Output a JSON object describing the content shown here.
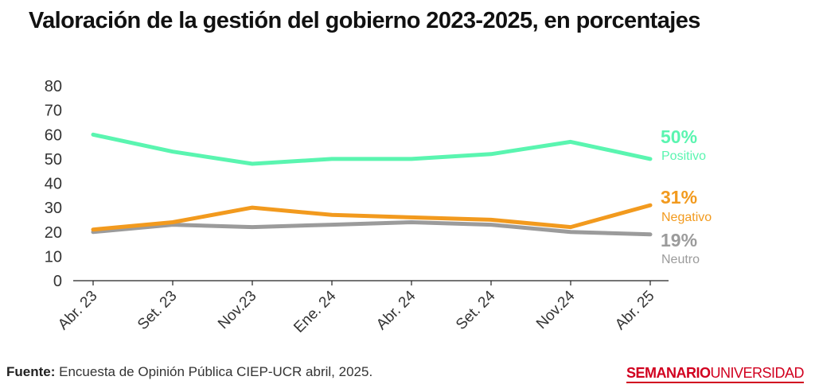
{
  "title": "Valoración de la gestión del gobierno 2023-2025, en porcentajes",
  "footer": {
    "source_label": "Fuente:",
    "source_text": "Encuesta de Opinión Pública CIEP-UCR abril, 2025."
  },
  "logo": {
    "part1": "SEMANARIO",
    "part2": "UNIVERSIDAD"
  },
  "colors": {
    "positivo": "#5af5b0",
    "negativo": "#f29a1e",
    "neutro": "#9b9b9b",
    "brand": "#d1001f"
  },
  "chart_data": {
    "type": "line",
    "categories": [
      "Abr. 23",
      "Set. 23",
      "Nov.23",
      "Ene. 24",
      "Abr. 24",
      "Set. 24",
      "Nov.24",
      "Abr. 25"
    ],
    "ylim": [
      0,
      80
    ],
    "yticks": [
      0,
      10,
      20,
      30,
      40,
      50,
      60,
      70,
      80
    ],
    "grid": false,
    "series": [
      {
        "name": "Positivo",
        "end_label": "50%",
        "color": "#5af5b0",
        "values": [
          60,
          53,
          48,
          50,
          50,
          52,
          57,
          50
        ]
      },
      {
        "name": "Negativo",
        "end_label": "31%",
        "color": "#f29a1e",
        "values": [
          21,
          24,
          30,
          27,
          26,
          25,
          22,
          31
        ]
      },
      {
        "name": "Neutro",
        "end_label": "19%",
        "color": "#9b9b9b",
        "values": [
          20,
          23,
          22,
          23,
          24,
          23,
          20,
          19
        ]
      }
    ]
  }
}
